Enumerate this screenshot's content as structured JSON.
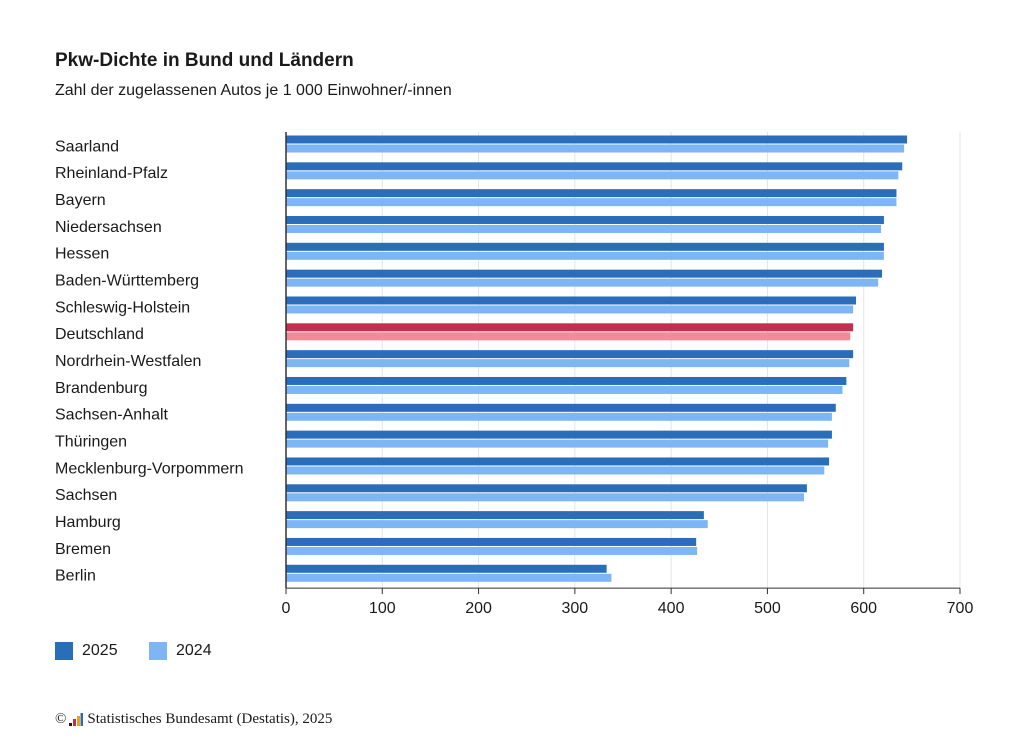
{
  "chart_data": {
    "type": "bar",
    "orientation": "horizontal",
    "title": "Pkw-Dichte in Bund und Ländern",
    "subtitle": "Zahl der zugelassenen Autos je 1 000 Einwohner/-innen",
    "categories": [
      "Saarland",
      "Rheinland-Pfalz",
      "Bayern",
      "Niedersachsen",
      "Hessen",
      "Baden-Württemberg",
      "Schleswig-Holstein",
      "Deutschland",
      "Nordrhein-Westfalen",
      "Brandenburg",
      "Sachsen-Anhalt",
      "Thüringen",
      "Mecklenburg-Vorpommern",
      "Sachsen",
      "Hamburg",
      "Bremen",
      "Berlin"
    ],
    "highlight_category": "Deutschland",
    "series": [
      {
        "name": "2025",
        "color": "#2a6ebb",
        "highlight_color": "#c0304f",
        "values": [
          645,
          640,
          634,
          621,
          621,
          619,
          592,
          589,
          589,
          582,
          571,
          567,
          564,
          541,
          434,
          426,
          333
        ]
      },
      {
        "name": "2024",
        "color": "#7eb5f5",
        "highlight_color": "#f28a98",
        "values": [
          642,
          636,
          634,
          618,
          621,
          615,
          589,
          586,
          585,
          578,
          567,
          563,
          559,
          538,
          438,
          427,
          338
        ]
      }
    ],
    "xlim": [
      0,
      700
    ],
    "xticks": [
      "0",
      "100",
      "200",
      "300",
      "400",
      "500",
      "600",
      "700"
    ],
    "grid": true,
    "legend_placement": "bottom-left"
  },
  "footer": {
    "copyright_symbol": "©",
    "source": "Statistisches Bundesamt (Destatis), 2025"
  },
  "logo_icon": "destatis-logo-icon"
}
